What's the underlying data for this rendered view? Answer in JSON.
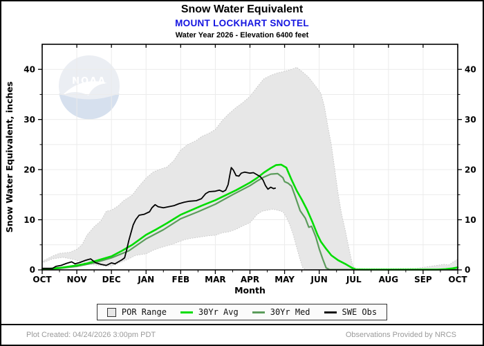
{
  "header": {
    "title": "Snow Water Equivalent",
    "station": "MOUNT LOCKHART SNOTEL",
    "station_color": "#1414e0",
    "subtitle": "Water Year 2026 -  Elevation 6400 feet"
  },
  "watermark": {
    "text": "NOAA"
  },
  "chart_data": {
    "type": "line",
    "title": "Snow Water Equivalent",
    "xlabel": "Month",
    "ylabel": "Snow Water Equivalent, inches",
    "x_tick_labels": [
      "OCT",
      "NOV",
      "DEC",
      "JAN",
      "FEB",
      "MAR",
      "APR",
      "MAY",
      "JUN",
      "JUL",
      "AUG",
      "SEP",
      "OCT"
    ],
    "ylim": [
      0,
      45
    ],
    "y_major_ticks": [
      0,
      10,
      20,
      30,
      40
    ],
    "y_minor_step": 5,
    "grid": "on",
    "legend_position": "bottom",
    "band_fill": "#e7e7e7",
    "band_edge": "#c6c6c6",
    "series": [
      {
        "name": "POR Range",
        "type": "band",
        "upper": [
          [
            0,
            1.7
          ],
          [
            0.2,
            2.4
          ],
          [
            0.35,
            2.9
          ],
          [
            0.5,
            3.3
          ],
          [
            0.8,
            3.5
          ],
          [
            1.0,
            4.1
          ],
          [
            1.15,
            5.0
          ],
          [
            1.3,
            7.0
          ],
          [
            1.5,
            8.6
          ],
          [
            1.7,
            9.8
          ],
          [
            1.85,
            11.7
          ],
          [
            2.0,
            11.9
          ],
          [
            2.2,
            12.8
          ],
          [
            2.35,
            13.8
          ],
          [
            2.6,
            14.9
          ],
          [
            2.75,
            16.3
          ],
          [
            3.0,
            18.3
          ],
          [
            3.2,
            19.5
          ],
          [
            3.45,
            20.2
          ],
          [
            3.6,
            20.5
          ],
          [
            3.8,
            21.8
          ],
          [
            4.0,
            23.9
          ],
          [
            4.2,
            25.0
          ],
          [
            4.45,
            25.8
          ],
          [
            4.6,
            26.6
          ],
          [
            4.8,
            27.2
          ],
          [
            5.0,
            28.0
          ],
          [
            5.2,
            29.8
          ],
          [
            5.4,
            31.2
          ],
          [
            5.6,
            32.4
          ],
          [
            5.8,
            33.4
          ],
          [
            6.0,
            34.6
          ],
          [
            6.2,
            36.4
          ],
          [
            6.4,
            38.1
          ],
          [
            6.6,
            38.8
          ],
          [
            6.8,
            39.3
          ],
          [
            7.0,
            39.6
          ],
          [
            7.2,
            40.0
          ],
          [
            7.35,
            40.4
          ],
          [
            7.5,
            39.6
          ],
          [
            7.7,
            38.4
          ],
          [
            7.9,
            36.6
          ],
          [
            8.05,
            35.2
          ],
          [
            8.15,
            32.6
          ],
          [
            8.25,
            28.6
          ],
          [
            8.35,
            25.0
          ],
          [
            8.45,
            20.0
          ],
          [
            8.55,
            15.0
          ],
          [
            8.65,
            11.0
          ],
          [
            8.75,
            8.0
          ],
          [
            8.85,
            4.6
          ],
          [
            8.95,
            1.4
          ],
          [
            9.0,
            0.5
          ],
          [
            9.1,
            0.25
          ],
          [
            10.0,
            0.25
          ],
          [
            10.8,
            0.3
          ],
          [
            11.1,
            0.6
          ],
          [
            11.4,
            0.9
          ],
          [
            11.6,
            1.1
          ],
          [
            11.75,
            1.0
          ],
          [
            11.85,
            1.5
          ],
          [
            12,
            2.1
          ]
        ],
        "lower": [
          [
            0,
            1.4
          ],
          [
            0.3,
            2.2
          ],
          [
            0.6,
            2.5
          ],
          [
            0.9,
            2.1
          ],
          [
            1.2,
            1.5
          ],
          [
            1.5,
            1.0
          ],
          [
            1.9,
            0.7
          ],
          [
            2.1,
            1.0
          ],
          [
            2.3,
            1.6
          ],
          [
            2.5,
            2.2
          ],
          [
            2.7,
            2.9
          ],
          [
            3.0,
            3.2
          ],
          [
            3.2,
            3.9
          ],
          [
            3.4,
            4.4
          ],
          [
            3.6,
            4.8
          ],
          [
            3.8,
            5.2
          ],
          [
            4.1,
            6.0
          ],
          [
            4.3,
            6.3
          ],
          [
            4.6,
            6.6
          ],
          [
            4.8,
            6.8
          ],
          [
            5.0,
            6.9
          ],
          [
            5.2,
            7.4
          ],
          [
            5.4,
            7.6
          ],
          [
            5.6,
            8.1
          ],
          [
            5.8,
            8.8
          ],
          [
            6.0,
            9.4
          ],
          [
            6.1,
            10.2
          ],
          [
            6.2,
            11.0
          ],
          [
            6.35,
            11.7
          ],
          [
            6.5,
            11.9
          ],
          [
            6.65,
            12.1
          ],
          [
            6.8,
            11.9
          ],
          [
            6.95,
            11.6
          ],
          [
            7.05,
            10.5
          ],
          [
            7.15,
            9.0
          ],
          [
            7.25,
            7.0
          ],
          [
            7.35,
            4.5
          ],
          [
            7.45,
            2.0
          ],
          [
            7.52,
            0.5
          ],
          [
            7.6,
            0.05
          ],
          [
            12,
            0.05
          ]
        ]
      },
      {
        "name": "30Yr Avg",
        "color": "#00dd00",
        "width": 2.6,
        "points": [
          [
            0,
            0.1
          ],
          [
            0.5,
            0.4
          ],
          [
            1.0,
            0.9
          ],
          [
            1.3,
            1.3
          ],
          [
            1.6,
            1.9
          ],
          [
            2.0,
            2.7
          ],
          [
            2.3,
            3.8
          ],
          [
            2.6,
            5.0
          ],
          [
            3.0,
            7.0
          ],
          [
            3.3,
            8.1
          ],
          [
            3.6,
            9.3
          ],
          [
            4.0,
            11.0
          ],
          [
            4.3,
            11.9
          ],
          [
            4.6,
            12.8
          ],
          [
            5.0,
            13.9
          ],
          [
            5.3,
            14.9
          ],
          [
            5.6,
            15.9
          ],
          [
            6.0,
            17.4
          ],
          [
            6.2,
            18.3
          ],
          [
            6.4,
            19.4
          ],
          [
            6.6,
            20.3
          ],
          [
            6.75,
            20.9
          ],
          [
            6.9,
            21.0
          ],
          [
            7.05,
            20.4
          ],
          [
            7.2,
            18.0
          ],
          [
            7.35,
            15.8
          ],
          [
            7.5,
            14.0
          ],
          [
            7.65,
            12.0
          ],
          [
            7.8,
            9.6
          ],
          [
            7.95,
            7.0
          ],
          [
            8.05,
            5.6
          ],
          [
            8.2,
            4.2
          ],
          [
            8.35,
            2.9
          ],
          [
            8.55,
            1.9
          ],
          [
            8.75,
            1.2
          ],
          [
            8.95,
            0.4
          ],
          [
            9.05,
            0.1
          ],
          [
            9.3,
            0.05
          ],
          [
            11.4,
            0.05
          ],
          [
            11.65,
            0.15
          ],
          [
            11.85,
            0.3
          ],
          [
            12,
            0.5
          ]
        ]
      },
      {
        "name": "30Yr Med",
        "color": "#5c9c5c",
        "width": 2.2,
        "points": [
          [
            0,
            0.05
          ],
          [
            0.5,
            0.3
          ],
          [
            1.0,
            0.7
          ],
          [
            1.5,
            1.4
          ],
          [
            2.0,
            2.4
          ],
          [
            2.5,
            3.8
          ],
          [
            3.0,
            6.2
          ],
          [
            3.5,
            8.0
          ],
          [
            4.0,
            10.2
          ],
          [
            4.5,
            11.6
          ],
          [
            5.0,
            13.1
          ],
          [
            5.5,
            15.0
          ],
          [
            6.0,
            16.8
          ],
          [
            6.2,
            17.7
          ],
          [
            6.4,
            18.5
          ],
          [
            6.6,
            19.1
          ],
          [
            6.8,
            19.2
          ],
          [
            6.95,
            18.4
          ],
          [
            7.0,
            17.6
          ],
          [
            7.1,
            17.3
          ],
          [
            7.2,
            16.7
          ],
          [
            7.3,
            14.8
          ],
          [
            7.45,
            11.8
          ],
          [
            7.6,
            10.3
          ],
          [
            7.7,
            8.5
          ],
          [
            7.78,
            8.7
          ],
          [
            7.9,
            6.6
          ],
          [
            8.0,
            4.2
          ],
          [
            8.1,
            2.2
          ],
          [
            8.2,
            0.4
          ],
          [
            8.3,
            0.05
          ],
          [
            12,
            0.05
          ]
        ]
      },
      {
        "name": "SWE Obs",
        "color": "#000000",
        "width": 1.8,
        "points": [
          [
            0,
            0.3
          ],
          [
            0.3,
            0.3
          ],
          [
            0.4,
            0.7
          ],
          [
            0.55,
            0.9
          ],
          [
            0.7,
            1.3
          ],
          [
            0.85,
            1.6
          ],
          [
            0.95,
            1.2
          ],
          [
            1.1,
            1.5
          ],
          [
            1.25,
            1.9
          ],
          [
            1.4,
            2.2
          ],
          [
            1.55,
            1.4
          ],
          [
            1.7,
            1.1
          ],
          [
            1.85,
            0.9
          ],
          [
            2.0,
            1.4
          ],
          [
            2.1,
            1.2
          ],
          [
            2.2,
            1.6
          ],
          [
            2.3,
            2.0
          ],
          [
            2.38,
            2.4
          ],
          [
            2.44,
            4.0
          ],
          [
            2.5,
            5.8
          ],
          [
            2.56,
            7.3
          ],
          [
            2.63,
            9.0
          ],
          [
            2.7,
            10.0
          ],
          [
            2.8,
            10.9
          ],
          [
            2.95,
            11.1
          ],
          [
            3.1,
            11.6
          ],
          [
            3.17,
            12.4
          ],
          [
            3.26,
            13.0
          ],
          [
            3.35,
            12.6
          ],
          [
            3.5,
            12.4
          ],
          [
            3.65,
            12.6
          ],
          [
            3.8,
            12.8
          ],
          [
            3.95,
            13.2
          ],
          [
            4.1,
            13.5
          ],
          [
            4.25,
            13.7
          ],
          [
            4.45,
            13.8
          ],
          [
            4.6,
            14.2
          ],
          [
            4.72,
            15.2
          ],
          [
            4.82,
            15.6
          ],
          [
            5.0,
            15.7
          ],
          [
            5.12,
            15.9
          ],
          [
            5.22,
            15.6
          ],
          [
            5.3,
            15.9
          ],
          [
            5.37,
            17.0
          ],
          [
            5.42,
            19.0
          ],
          [
            5.46,
            20.4
          ],
          [
            5.52,
            19.9
          ],
          [
            5.6,
            18.8
          ],
          [
            5.68,
            18.7
          ],
          [
            5.75,
            19.3
          ],
          [
            5.85,
            19.5
          ],
          [
            6.0,
            19.3
          ],
          [
            6.1,
            19.4
          ],
          [
            6.2,
            19.0
          ],
          [
            6.3,
            18.6
          ],
          [
            6.38,
            17.9
          ],
          [
            6.45,
            16.8
          ],
          [
            6.52,
            16.1
          ],
          [
            6.6,
            16.5
          ],
          [
            6.68,
            16.2
          ],
          [
            6.73,
            16.3
          ]
        ]
      }
    ]
  },
  "legend": {
    "items": [
      {
        "label": "POR Range",
        "swatch": "band",
        "color": "#e7e7e7"
      },
      {
        "label": "30Yr Avg",
        "swatch": "line",
        "color": "#00dd00"
      },
      {
        "label": "30Yr Med",
        "swatch": "line",
        "color": "#5c9c5c"
      },
      {
        "label": "SWE Obs",
        "swatch": "line",
        "color": "#111111"
      }
    ]
  },
  "footer": {
    "created": "Plot Created: 04/24/2026 3:00pm PDT",
    "source": "Observations Provided by NRCS"
  }
}
